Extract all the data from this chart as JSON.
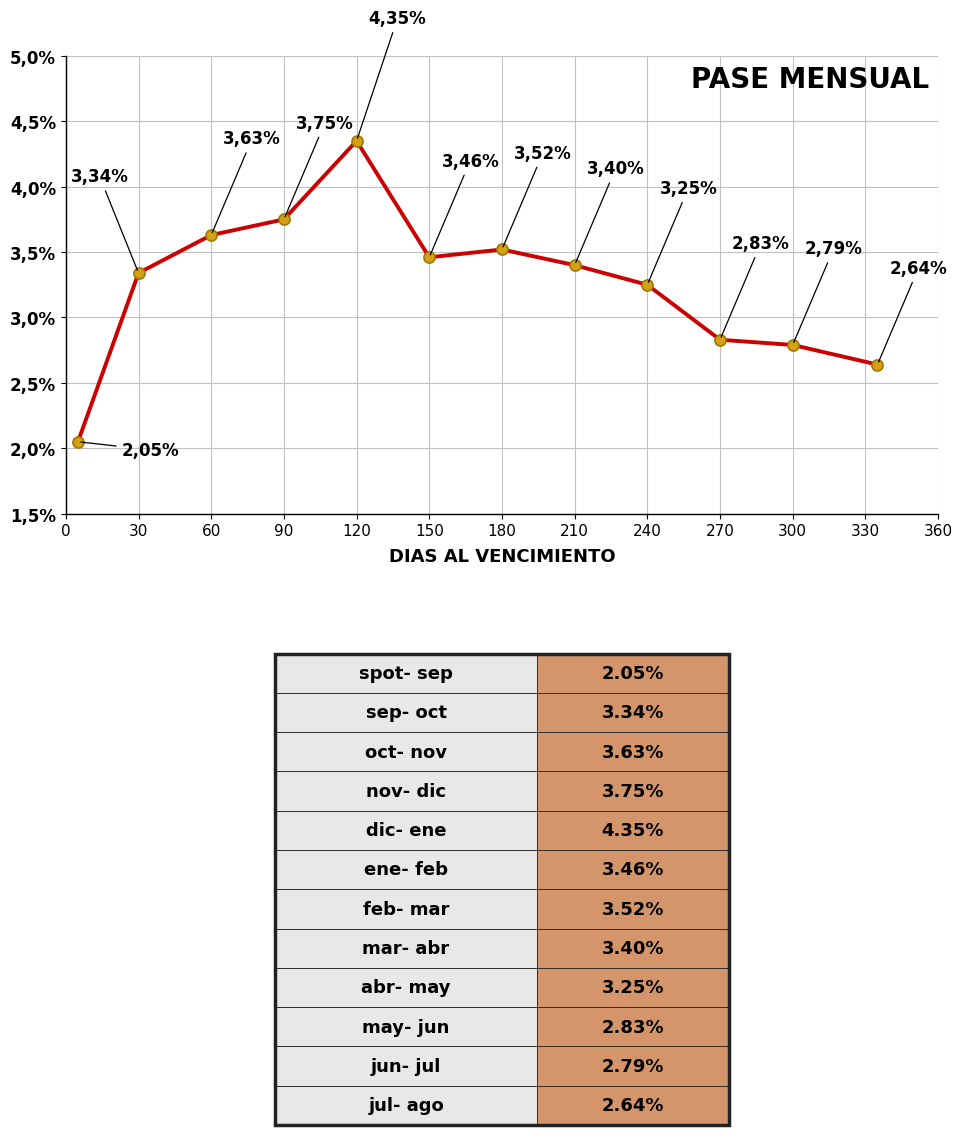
{
  "title": "PASE MENSUAL",
  "xlabel": "DIAS AL VENCIMIENTO",
  "x_values": [
    5,
    30,
    60,
    90,
    120,
    150,
    180,
    210,
    240,
    270,
    300,
    335
  ],
  "y_values": [
    2.05,
    3.34,
    3.63,
    3.75,
    4.35,
    3.46,
    3.52,
    3.4,
    3.25,
    2.83,
    2.79,
    2.64
  ],
  "chart_labels": [
    "2,05%",
    "3,34%",
    "3,63%",
    "3,75%",
    "4,35%",
    "3,46%",
    "3,52%",
    "3,40%",
    "3,25%",
    "2,83%",
    "2,79%",
    "2,64%"
  ],
  "ylim": [
    1.5,
    5.0
  ],
  "xlim": [
    0,
    360
  ],
  "xticks": [
    0,
    30,
    60,
    90,
    120,
    150,
    180,
    210,
    240,
    270,
    300,
    330,
    360
  ],
  "yticks": [
    1.5,
    2.0,
    2.5,
    3.0,
    3.5,
    4.0,
    4.5,
    5.0
  ],
  "ytick_labels": [
    "1,5%",
    "2,0%",
    "2,5%",
    "3,0%",
    "3,5%",
    "4,0%",
    "4,5%",
    "5,0%"
  ],
  "line_color": "#cc0000",
  "marker_facecolor": "#d4a017",
  "marker_edgecolor": "#a07800",
  "bg_color": "#ffffff",
  "grid_color": "#c0c0c0",
  "table_rows": [
    [
      "spot- sep",
      "2.05%"
    ],
    [
      "sep- oct",
      "3.34%"
    ],
    [
      "oct- nov",
      "3.63%"
    ],
    [
      "nov- dic",
      "3.75%"
    ],
    [
      "dic- ene",
      "4.35%"
    ],
    [
      "ene- feb",
      "3.46%"
    ],
    [
      "feb- mar",
      "3.52%"
    ],
    [
      "mar- abr",
      "3.40%"
    ],
    [
      "abr- may",
      "3.25%"
    ],
    [
      "may- jun",
      "2.83%"
    ],
    [
      "jun- jul",
      "2.79%"
    ],
    [
      "jul- ago",
      "2.64%"
    ]
  ],
  "table_col1_bg": "#e8e8e8",
  "table_col2_bg": "#d4956a",
  "table_border_color": "#222222"
}
